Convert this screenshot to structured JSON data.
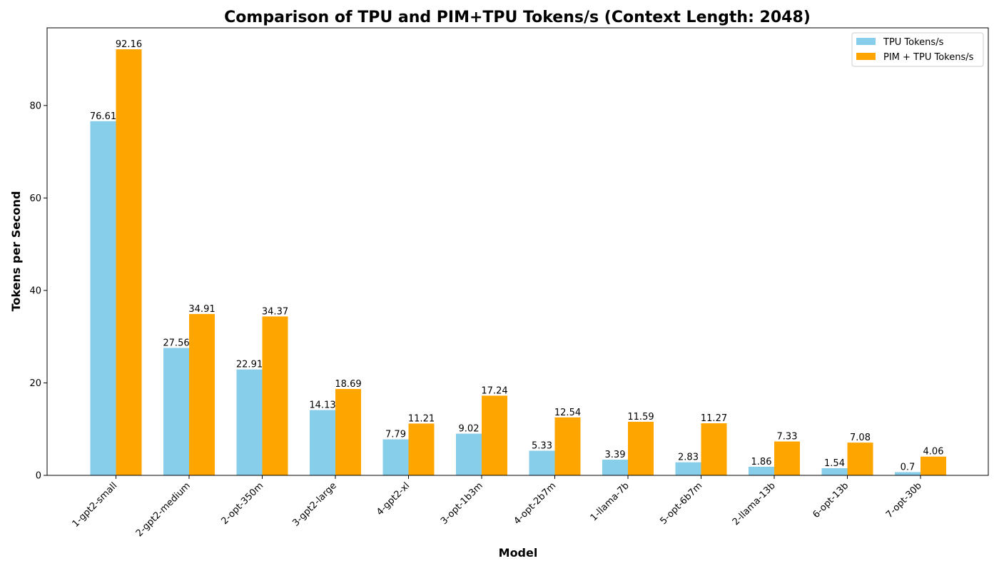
{
  "chart_data": {
    "type": "bar",
    "title": "Comparison of TPU and PIM+TPU Tokens/s (Context Length: 2048)",
    "xlabel": "Model",
    "ylabel": "Tokens per Second",
    "ylim": [
      0,
      96.8
    ],
    "yticks": [
      0,
      20,
      40,
      60,
      80
    ],
    "grid": false,
    "legend_position": "top-right",
    "categories": [
      "1-gpt2-small",
      "2-gpt2-medium",
      "2-opt-350m",
      "3-gpt2-large",
      "4-gpt2-xl",
      "3-opt-1b3m",
      "4-opt-2b7m",
      "1-llama-7b",
      "5-opt-6b7m",
      "2-llama-13b",
      "6-opt-13b",
      "7-opt-30b"
    ],
    "series": [
      {
        "name": "TPU Tokens/s",
        "color": "#87CEEB",
        "values": [
          76.61,
          27.56,
          22.91,
          14.13,
          7.79,
          9.02,
          5.33,
          3.39,
          2.83,
          1.86,
          1.54,
          0.7
        ],
        "labels": [
          "76.61",
          "27.56",
          "22.91",
          "14.13",
          "7.79",
          "9.02",
          "5.33",
          "3.39",
          "2.83",
          "1.86",
          "1.54",
          "0.7"
        ]
      },
      {
        "name": "PIM + TPU Tokens/s",
        "color": "#FFA500",
        "values": [
          92.16,
          34.91,
          34.37,
          18.69,
          11.21,
          17.24,
          12.54,
          11.59,
          11.27,
          7.33,
          7.08,
          4.06
        ],
        "labels": [
          "92.16",
          "34.91",
          "34.37",
          "18.69",
          "11.21",
          "17.24",
          "12.54",
          "11.59",
          "11.27",
          "7.33",
          "7.08",
          "4.06"
        ]
      }
    ]
  }
}
